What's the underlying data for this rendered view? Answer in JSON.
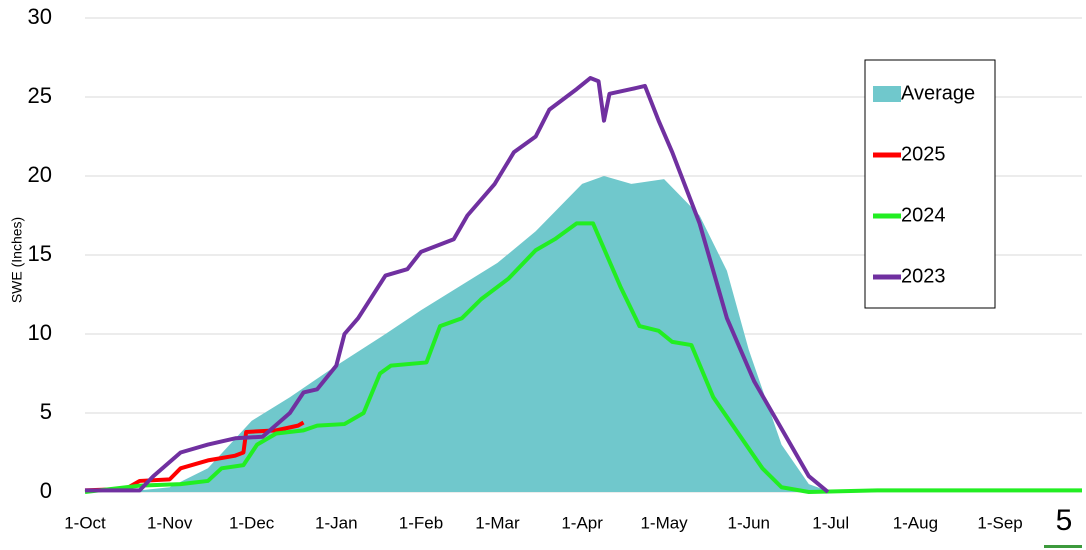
{
  "chart_data": {
    "type": "line",
    "ylabel": "SWE (Inches)",
    "xlim": [
      0,
      365
    ],
    "ylim": [
      0,
      30
    ],
    "xticks": [
      {
        "value": 0,
        "label": "1-Oct"
      },
      {
        "value": 31,
        "label": "1-Nov"
      },
      {
        "value": 61,
        "label": "1-Dec"
      },
      {
        "value": 92,
        "label": "1-Jan"
      },
      {
        "value": 123,
        "label": "1-Feb"
      },
      {
        "value": 151,
        "label": "1-Mar"
      },
      {
        "value": 182,
        "label": "1-Apr"
      },
      {
        "value": 212,
        "label": "1-May"
      },
      {
        "value": 243,
        "label": "1-Jun"
      },
      {
        "value": 273,
        "label": "1-Jul"
      },
      {
        "value": 304,
        "label": "1-Aug"
      },
      {
        "value": 335,
        "label": "1-Sep"
      }
    ],
    "yticks": [
      0,
      5,
      10,
      15,
      20,
      25,
      30
    ],
    "grid": true,
    "legend": "right",
    "series": [
      {
        "name": "Average",
        "kind": "area",
        "color": "#70c8cc",
        "x": [
          0,
          20,
          31,
          45,
          61,
          75,
          92,
          110,
          123,
          151,
          165,
          182,
          190,
          200,
          212,
          225,
          235,
          243,
          255,
          265,
          273
        ],
        "values": [
          0,
          0.1,
          0.3,
          1.5,
          4.5,
          6,
          8,
          10,
          11.5,
          14.5,
          16.5,
          19.5,
          20,
          19.5,
          19.8,
          17.5,
          14,
          9,
          3,
          0.5,
          0
        ]
      },
      {
        "name": "2025",
        "kind": "line",
        "color": "#ff0000",
        "x": [
          0,
          15,
          20,
          31,
          35,
          45,
          55,
          58,
          59,
          70,
          78,
          80
        ],
        "values": [
          0.1,
          0.2,
          0.7,
          0.8,
          1.5,
          2,
          2.3,
          2.5,
          3.8,
          3.9,
          4.2,
          4.4
        ]
      },
      {
        "name": "2024",
        "kind": "line",
        "color": "#22ee22",
        "x": [
          0,
          10,
          20,
          35,
          45,
          50,
          58,
          63,
          70,
          80,
          85,
          95,
          102,
          108,
          112,
          125,
          130,
          138,
          145,
          155,
          165,
          172,
          180,
          186,
          196,
          203,
          210,
          215,
          222,
          230,
          240,
          248,
          255,
          265,
          290,
          365
        ],
        "values": [
          0,
          0.2,
          0.4,
          0.5,
          0.7,
          1.5,
          1.7,
          3,
          3.7,
          3.9,
          4.2,
          4.3,
          5,
          7.5,
          8,
          8.2,
          10.5,
          11,
          12.2,
          13.5,
          15.3,
          16,
          17,
          17,
          13,
          10.5,
          10.2,
          9.5,
          9.3,
          6,
          3.5,
          1.5,
          0.3,
          0,
          0.1,
          0.1
        ]
      },
      {
        "name": "2023",
        "kind": "line",
        "color": "#7030a0",
        "x": [
          0,
          20,
          25,
          35,
          45,
          55,
          65,
          75,
          80,
          85,
          92,
          95,
          100,
          110,
          118,
          123,
          135,
          140,
          150,
          157,
          165,
          170,
          180,
          185,
          188,
          190,
          192,
          200,
          205,
          210,
          215,
          225,
          235,
          245,
          255,
          265,
          272
        ],
        "values": [
          0.1,
          0.1,
          1,
          2.5,
          3,
          3.4,
          3.5,
          5,
          6.3,
          6.5,
          8,
          10,
          11,
          13.7,
          14.1,
          15.2,
          16,
          17.5,
          19.5,
          21.5,
          22.5,
          24.2,
          25.5,
          26.2,
          26,
          23.5,
          25.2,
          25.5,
          25.7,
          23.5,
          21.5,
          17,
          11,
          7,
          4,
          1,
          0
        ]
      }
    ]
  },
  "page_number": "5"
}
